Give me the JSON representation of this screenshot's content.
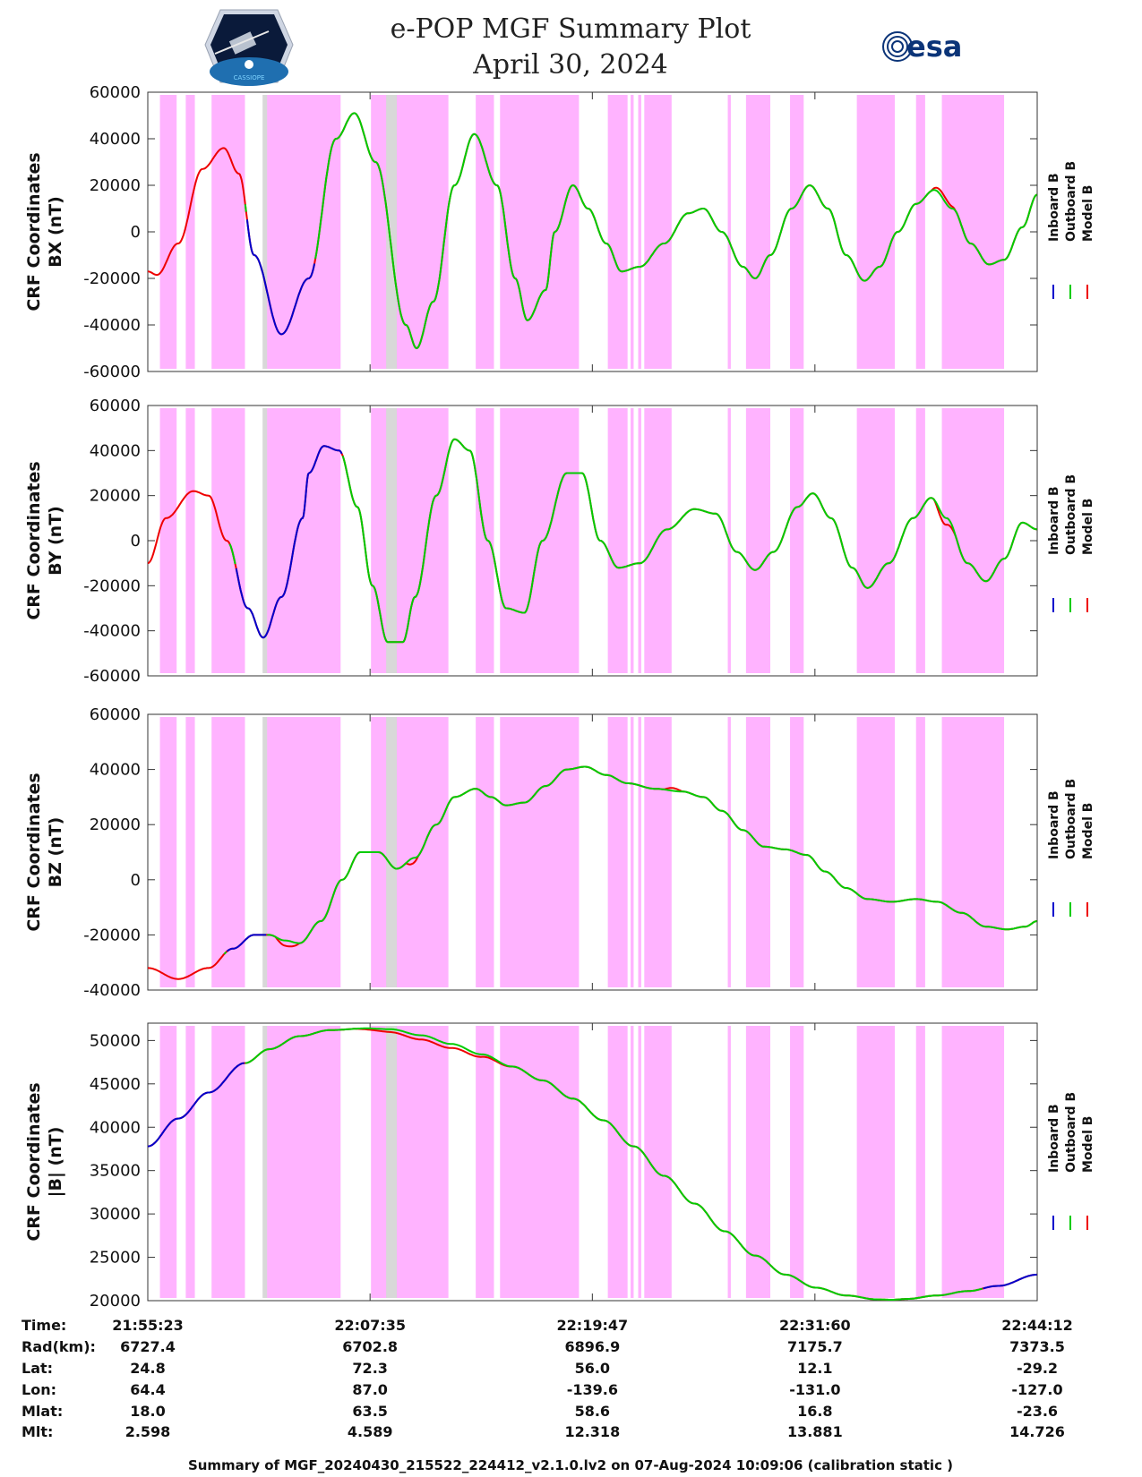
{
  "header": {
    "title": "e-POP MGF Summary Plot",
    "date": "April 30, 2024",
    "left_logo": "cassiope-mission-logo",
    "left_logo_text": "CASSIOPE",
    "right_logo": "esa-logo",
    "right_logo_text": "esa"
  },
  "legend": [
    {
      "label": "Inboard B",
      "color": "#0000cc"
    },
    {
      "label": "Outboard B",
      "color": "#00cc00"
    },
    {
      "label": "Model B",
      "color": "#ee0000"
    }
  ],
  "colors": {
    "band_pink": "#ffb3ff",
    "band_gray": "#d8d8d8"
  },
  "chart_data": {
    "type": "line",
    "x_unit": "seconds since 21:55:23",
    "xlim": [
      0,
      2929
    ],
    "x_tick_values": [
      0,
      732,
      1464,
      2197,
      2929
    ],
    "x_tick_labels": [
      "21:55:23",
      "22:07:35",
      "22:19:47",
      "22:31:60",
      "22:44:12"
    ],
    "pink_bands": [
      [
        40,
        95
      ],
      [
        125,
        155
      ],
      [
        210,
        320
      ],
      [
        380,
        635
      ],
      [
        735,
        990
      ],
      [
        1080,
        1140
      ],
      [
        1160,
        1420
      ],
      [
        1515,
        1580
      ],
      [
        1590,
        1600
      ],
      [
        1615,
        1625
      ],
      [
        1635,
        1725
      ],
      [
        1910,
        1920
      ],
      [
        1970,
        2050
      ],
      [
        2115,
        2160
      ],
      [
        2335,
        2460
      ],
      [
        2530,
        2560
      ],
      [
        2615,
        2820
      ]
    ],
    "gray_bands": [
      [
        378,
        393
      ],
      [
        785,
        820
      ]
    ],
    "panels": [
      {
        "ylabel": [
          "CRF Coordinates",
          "BX (nT)"
        ],
        "ylim": [
          -60000,
          60000
        ],
        "yticks": [
          -60000,
          -40000,
          -20000,
          0,
          20000,
          40000,
          60000
        ],
        "waves": [
          [
            0,
            -17000
          ],
          [
            30,
            -18500
          ],
          [
            100,
            -5000
          ],
          [
            180,
            27000
          ],
          [
            250,
            36000
          ],
          [
            300,
            25000
          ],
          [
            350,
            -10000
          ],
          [
            440,
            -44000
          ],
          [
            530,
            -20000
          ],
          [
            620,
            40000
          ],
          [
            680,
            51000
          ],
          [
            750,
            30000
          ],
          [
            850,
            -40000
          ],
          [
            885,
            -50000
          ],
          [
            940,
            -30000
          ],
          [
            1010,
            20000
          ],
          [
            1075,
            42000
          ],
          [
            1150,
            20000
          ],
          [
            1210,
            -20000
          ],
          [
            1250,
            -38000
          ],
          [
            1310,
            -25000
          ],
          [
            1340,
            0
          ],
          [
            1400,
            20000
          ],
          [
            1450,
            10000
          ],
          [
            1510,
            -5000
          ],
          [
            1560,
            -17000
          ],
          [
            1620,
            -15000
          ],
          [
            1700,
            -5000
          ],
          [
            1780,
            8000
          ],
          [
            1830,
            10000
          ],
          [
            1890,
            0
          ],
          [
            1960,
            -15000
          ],
          [
            2000,
            -20000
          ],
          [
            2050,
            -10000
          ],
          [
            2120,
            10000
          ],
          [
            2180,
            20000
          ],
          [
            2240,
            10000
          ],
          [
            2300,
            -10000
          ],
          [
            2360,
            -21000
          ],
          [
            2410,
            -15000
          ],
          [
            2470,
            0
          ],
          [
            2530,
            12000
          ],
          [
            2590,
            18000
          ],
          [
            2650,
            10000
          ],
          [
            2710,
            -5000
          ],
          [
            2770,
            -14000
          ],
          [
            2820,
            -12000
          ],
          [
            2880,
            2000
          ],
          [
            2929,
            16000
          ]
        ],
        "inboard_segments": [
          [
            325,
            550
          ]
        ],
        "model_deviation": [
          [
            2580,
            2660,
            2000
          ]
        ]
      },
      {
        "ylabel": [
          "CRF Coordinates",
          "BY (nT)"
        ],
        "ylim": [
          -60000,
          60000
        ],
        "yticks": [
          -60000,
          -40000,
          -20000,
          0,
          20000,
          40000,
          60000
        ],
        "waves": [
          [
            0,
            -10000
          ],
          [
            60,
            10000
          ],
          [
            150,
            22000
          ],
          [
            200,
            20000
          ],
          [
            260,
            0
          ],
          [
            330,
            -30000
          ],
          [
            380,
            -43000
          ],
          [
            440,
            -25000
          ],
          [
            510,
            10000
          ],
          [
            580,
            42000
          ],
          [
            530,
            30000
          ],
          [
            630,
            40000
          ],
          [
            690,
            15000
          ],
          [
            740,
            -20000
          ],
          [
            790,
            -45000
          ],
          [
            840,
            -45000
          ],
          [
            880,
            -25000
          ],
          [
            950,
            20000
          ],
          [
            1010,
            45000
          ],
          [
            1060,
            40000
          ],
          [
            1120,
            0
          ],
          [
            1180,
            -30000
          ],
          [
            1240,
            -32000
          ],
          [
            1300,
            0
          ],
          [
            1380,
            30000
          ],
          [
            1430,
            30000
          ],
          [
            1490,
            0
          ],
          [
            1550,
            -12000
          ],
          [
            1620,
            -10000
          ],
          [
            1710,
            5000
          ],
          [
            1800,
            14000
          ],
          [
            1870,
            12000
          ],
          [
            1940,
            -5000
          ],
          [
            2000,
            -13000
          ],
          [
            2060,
            -5000
          ],
          [
            2140,
            15000
          ],
          [
            2190,
            21000
          ],
          [
            2250,
            10000
          ],
          [
            2320,
            -12000
          ],
          [
            2370,
            -21000
          ],
          [
            2440,
            -10000
          ],
          [
            2520,
            10000
          ],
          [
            2580,
            19000
          ],
          [
            2630,
            10000
          ],
          [
            2700,
            -10000
          ],
          [
            2760,
            -18000
          ],
          [
            2820,
            -8000
          ],
          [
            2880,
            8000
          ],
          [
            2929,
            5000
          ]
        ],
        "inboard_segments": [
          [
            290,
            640
          ]
        ],
        "model_deviation": [
          [
            2590,
            2660,
            -3000
          ]
        ]
      },
      {
        "ylabel": [
          "CRF Coordinates",
          "BZ (nT)"
        ],
        "ylim": [
          -40000,
          60000
        ],
        "yticks": [
          -40000,
          -20000,
          0,
          20000,
          40000,
          60000
        ],
        "waves": [
          [
            0,
            -32000
          ],
          [
            100,
            -36000
          ],
          [
            200,
            -32000
          ],
          [
            280,
            -25000
          ],
          [
            350,
            -20000
          ],
          [
            400,
            -20000
          ],
          [
            450,
            -22000
          ],
          [
            500,
            -23000
          ],
          [
            570,
            -15000
          ],
          [
            640,
            0
          ],
          [
            700,
            10000
          ],
          [
            760,
            10000
          ],
          [
            820,
            4000
          ],
          [
            880,
            8000
          ],
          [
            950,
            20000
          ],
          [
            1010,
            30000
          ],
          [
            1080,
            33000
          ],
          [
            1130,
            30000
          ],
          [
            1180,
            27000
          ],
          [
            1240,
            28000
          ],
          [
            1310,
            34000
          ],
          [
            1380,
            40000
          ],
          [
            1440,
            41000
          ],
          [
            1510,
            38000
          ],
          [
            1580,
            35000
          ],
          [
            1670,
            33000
          ],
          [
            1760,
            32000
          ],
          [
            1830,
            30000
          ],
          [
            1890,
            25000
          ],
          [
            1960,
            18000
          ],
          [
            2030,
            12000
          ],
          [
            2100,
            11000
          ],
          [
            2170,
            9000
          ],
          [
            2230,
            3000
          ],
          [
            2300,
            -3000
          ],
          [
            2370,
            -7000
          ],
          [
            2450,
            -8000
          ],
          [
            2530,
            -7000
          ],
          [
            2600,
            -8000
          ],
          [
            2680,
            -12000
          ],
          [
            2760,
            -17000
          ],
          [
            2830,
            -18000
          ],
          [
            2890,
            -17000
          ],
          [
            2929,
            -15000
          ]
        ],
        "inboard_segments": [
          [
            260,
            390
          ]
        ],
        "model_deviation": [
          [
            420,
            500,
            -2000
          ],
          [
            850,
            890,
            -2000
          ],
          [
            1700,
            1760,
            1000
          ]
        ]
      },
      {
        "ylabel": [
          "CRF Coordinates",
          "|B| (nT)"
        ],
        "ylim": [
          20000,
          52000
        ],
        "yticks": [
          20000,
          25000,
          30000,
          35000,
          40000,
          45000,
          50000
        ],
        "waves": [
          [
            0,
            37800
          ],
          [
            100,
            41000
          ],
          [
            200,
            44000
          ],
          [
            320,
            47400
          ],
          [
            400,
            49000
          ],
          [
            500,
            50500
          ],
          [
            600,
            51200
          ],
          [
            720,
            51400
          ],
          [
            800,
            51300
          ],
          [
            900,
            50600
          ],
          [
            1000,
            49600
          ],
          [
            1100,
            48400
          ],
          [
            1200,
            47000
          ],
          [
            1300,
            45400
          ],
          [
            1400,
            43300
          ],
          [
            1500,
            40800
          ],
          [
            1600,
            37800
          ],
          [
            1700,
            34400
          ],
          [
            1800,
            31200
          ],
          [
            1900,
            28000
          ],
          [
            2000,
            25200
          ],
          [
            2100,
            23000
          ],
          [
            2200,
            21500
          ],
          [
            2300,
            20600
          ],
          [
            2400,
            20150
          ],
          [
            2450,
            20100
          ],
          [
            2500,
            20200
          ],
          [
            2600,
            20600
          ],
          [
            2700,
            21100
          ],
          [
            2800,
            21700
          ],
          [
            2929,
            23000
          ]
        ],
        "inboard_segments": [
          [
            0,
            320
          ],
          [
            2750,
            2929
          ]
        ],
        "model_deviation": [
          [
            680,
            1200,
            -500
          ]
        ]
      }
    ]
  },
  "orbit_table": {
    "row_labels": [
      "Time:",
      "Rad(km):",
      "Lat:",
      "Lon:",
      "Mlat:",
      "Mlt:"
    ],
    "columns": [
      [
        "21:55:23",
        "6727.4",
        "24.8",
        "64.4",
        "18.0",
        "2.598"
      ],
      [
        "22:07:35",
        "6702.8",
        "72.3",
        "87.0",
        "63.5",
        "4.589"
      ],
      [
        "22:19:47",
        "6896.9",
        "56.0",
        "-139.6",
        "58.6",
        "12.318"
      ],
      [
        "22:31:60",
        "7175.7",
        "12.1",
        "-131.0",
        "16.8",
        "13.881"
      ],
      [
        "22:44:12",
        "7373.5",
        "-29.2",
        "-127.0",
        "-23.6",
        "14.726"
      ]
    ]
  },
  "footer": "Summary of MGF_20240430_215522_224412_v2.1.0.lv2 on 07-Aug-2024 10:09:06 (calibration static )"
}
